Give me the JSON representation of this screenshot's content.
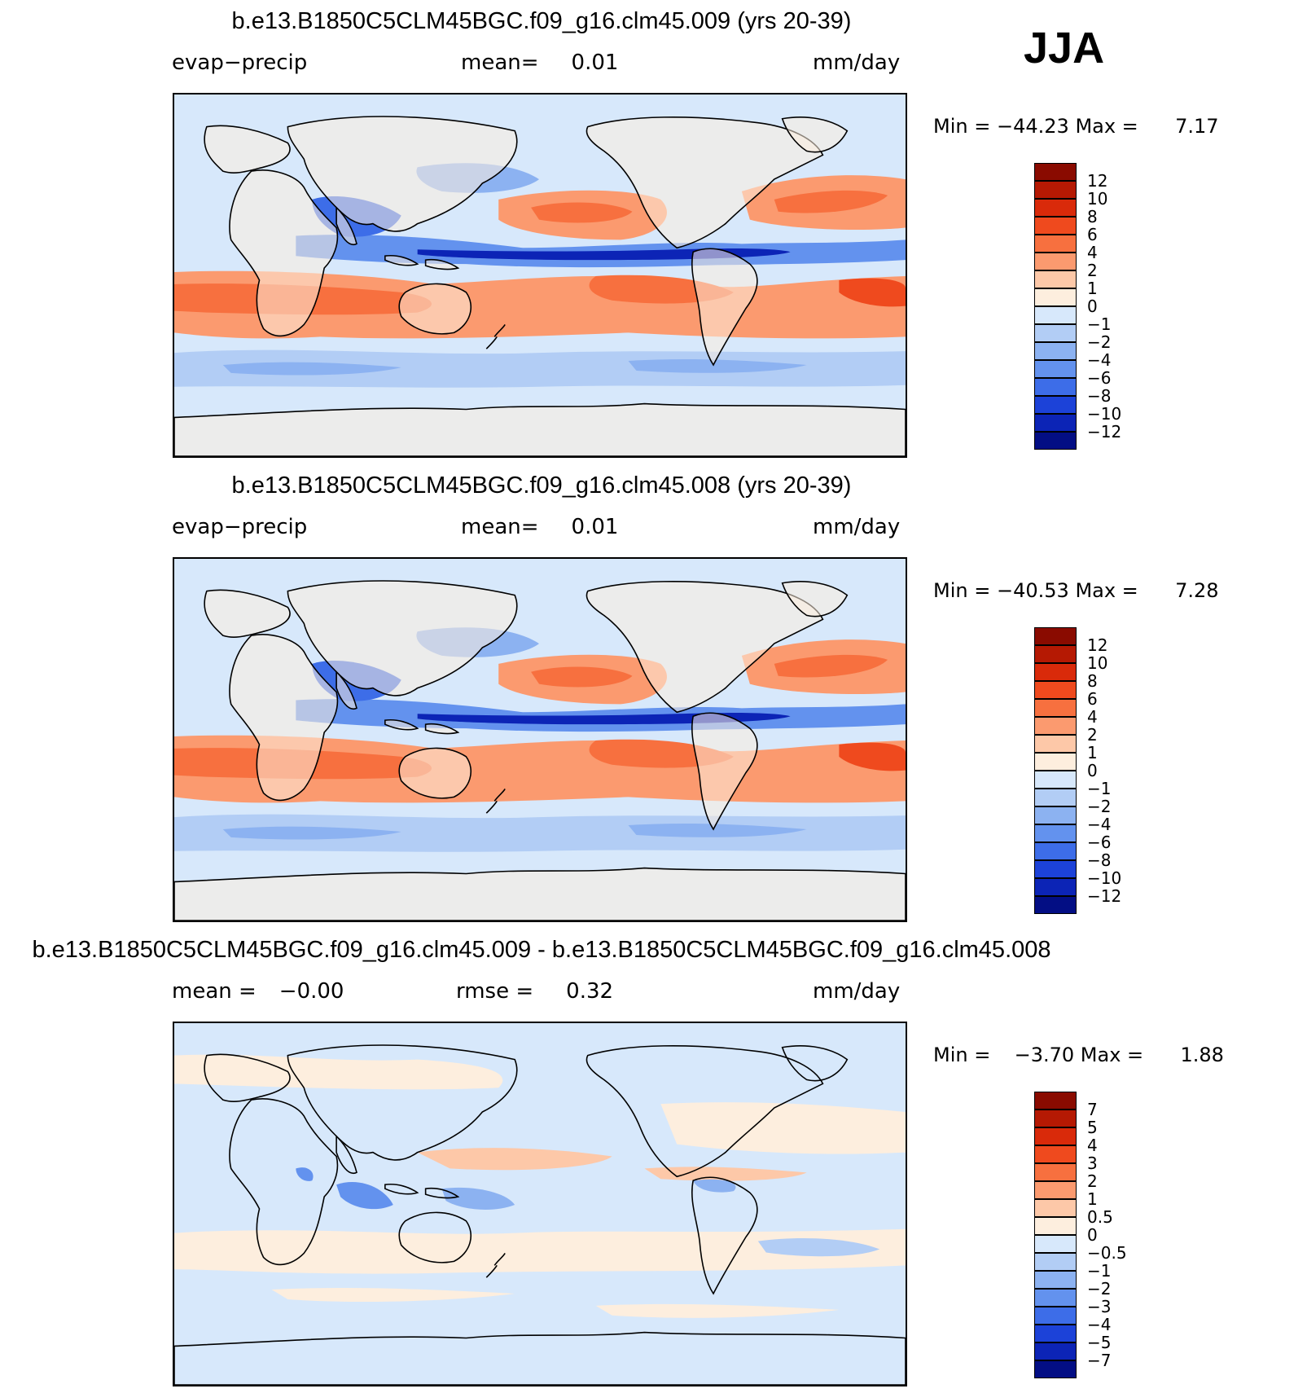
{
  "season": "JJA",
  "colors": {
    "pos": [
      "#fdeede",
      "#fdc8a8",
      "#fb9a6f",
      "#f7703f",
      "#ef4a1e",
      "#d92a0a",
      "#b51903",
      "#8a0b00"
    ],
    "neg": [
      "#d7e8fb",
      "#b2cdf5",
      "#8cb2f1",
      "#6392ee",
      "#3d6de8",
      "#1c42d8",
      "#0c24b6",
      "#030e84"
    ],
    "land": "#fdeede",
    "ocean": "#d7e8fb"
  },
  "panels": [
    {
      "title": "b.e13.B1850C5CLM45BGC.f09_g16.clm45.009 (yrs 20-39)",
      "variable": "evap−precip",
      "mean_label": "mean=",
      "mean_value": "0.01",
      "units": "mm/day",
      "min_label": "Min  =",
      "min_value": "−44.23",
      "max_label": "Max  =",
      "max_value": "7.17",
      "levels": [
        "12",
        "10",
        "8",
        "6",
        "4",
        "2",
        "1",
        "0",
        "−1",
        "−2",
        "−4",
        "−6",
        "−8",
        "−10",
        "−12"
      ]
    },
    {
      "title": "b.e13.B1850C5CLM45BGC.f09_g16.clm45.008 (yrs 20-39)",
      "variable": "evap−precip",
      "mean_label": "mean=",
      "mean_value": "0.01",
      "units": "mm/day",
      "min_label": "Min  =",
      "min_value": "−40.53",
      "max_label": "Max  =",
      "max_value": "7.28",
      "levels": [
        "12",
        "10",
        "8",
        "6",
        "4",
        "2",
        "1",
        "0",
        "−1",
        "−2",
        "−4",
        "−6",
        "−8",
        "−10",
        "−12"
      ]
    },
    {
      "title": "b.e13.B1850C5CLM45BGC.f09_g16.clm45.009 - b.e13.B1850C5CLM45BGC.f09_g16.clm45.008",
      "mean_label": "mean  =",
      "mean_value": "−0.00",
      "rmse_label": "rmse  =",
      "rmse_value": "0.32",
      "units": "mm/day",
      "min_label": "Min  =",
      "min_value": "−3.70",
      "max_label": "Max  =",
      "max_value": "1.88",
      "levels": [
        "7",
        "5",
        "4",
        "3",
        "2",
        "1",
        "0.5",
        "0",
        "−0.5",
        "−1",
        "−2",
        "−3",
        "−4",
        "−5",
        "−7"
      ]
    }
  ]
}
